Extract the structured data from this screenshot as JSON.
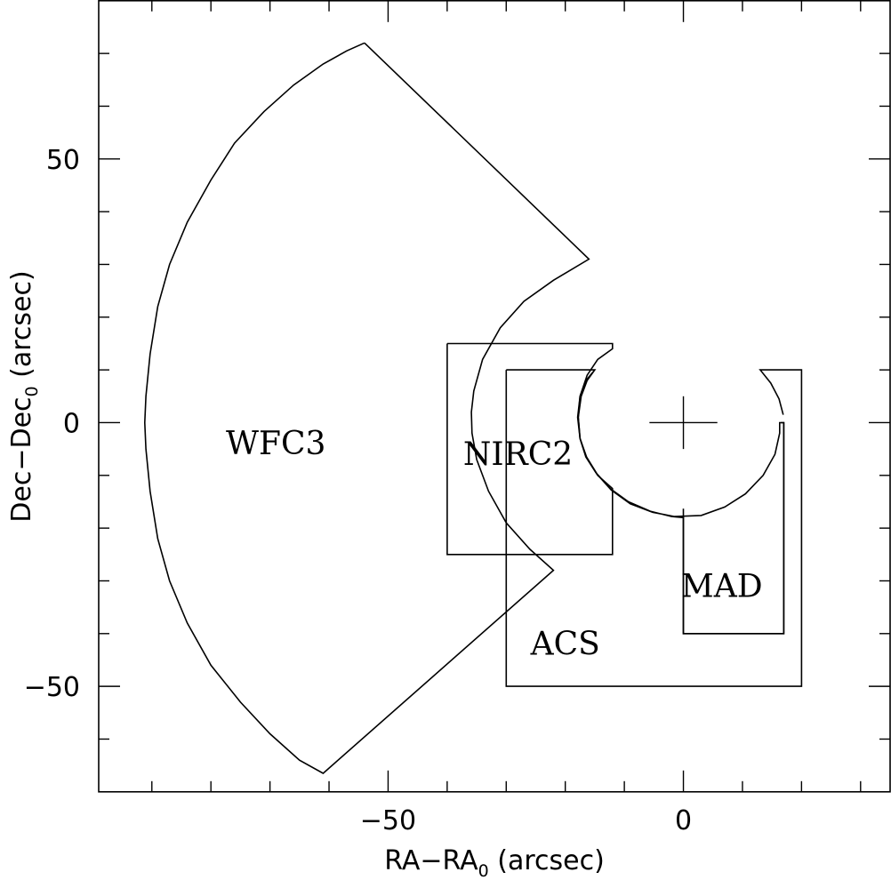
{
  "chart_data": {
    "type": "line",
    "xlabel": "RA−RA",
    "xlabel_sub": "0",
    "xlabel_tail": " (arcsec)",
    "ylabel": "Dec−Dec",
    "ylabel_sub": "0",
    "ylabel_tail": " (arcsec)",
    "xlim": [
      -99,
      35
    ],
    "ylim": [
      -70,
      80
    ],
    "grid": false,
    "x_ticks": [
      {
        "value": -50,
        "label": "−50"
      },
      {
        "value": 0,
        "label": "0"
      }
    ],
    "y_ticks": [
      {
        "value": 50,
        "label": "50"
      },
      {
        "value": 0,
        "label": "0"
      },
      {
        "value": -50,
        "label": "−50"
      }
    ],
    "x_minor_ticks": [
      -90,
      -80,
      -70,
      -60,
      -50,
      -40,
      -30,
      -20,
      -10,
      0,
      10,
      20,
      30
    ],
    "y_minor_ticks": [
      -60,
      -50,
      -40,
      -30,
      -20,
      -10,
      0,
      10,
      20,
      30,
      40,
      50,
      60,
      70
    ],
    "center_marker": {
      "x": 0,
      "y": 0,
      "half_size": 5,
      "symbol": "+"
    },
    "fields": [
      {
        "name": "WFC3",
        "label": "WFC3",
        "label_pos": [
          -69,
          -4
        ],
        "points": [
          [
            -54,
            72
          ],
          [
            -57,
            70.5
          ],
          [
            -61,
            68
          ],
          [
            -66,
            64
          ],
          [
            -71,
            59
          ],
          [
            -76,
            53
          ],
          [
            -80,
            46
          ],
          [
            -84,
            38
          ],
          [
            -87,
            30
          ],
          [
            -89,
            22
          ],
          [
            -90.3,
            13
          ],
          [
            -91,
            5
          ],
          [
            -91.2,
            0
          ],
          [
            -91,
            -5
          ],
          [
            -90.3,
            -13
          ],
          [
            -89,
            -22
          ],
          [
            -87,
            -30
          ],
          [
            -84,
            -38
          ],
          [
            -80,
            -46
          ],
          [
            -75,
            -53
          ],
          [
            -70,
            -59
          ],
          [
            -65,
            -64
          ],
          [
            -61,
            -66.5
          ],
          [
            -22,
            -28
          ],
          [
            -26,
            -24
          ],
          [
            -30,
            -19
          ],
          [
            -33,
            -13
          ],
          [
            -35,
            -7
          ],
          [
            -35.8,
            -2
          ],
          [
            -35.9,
            2
          ],
          [
            -35.5,
            6
          ],
          [
            -34,
            12
          ],
          [
            -31,
            18
          ],
          [
            -27,
            23
          ],
          [
            -22,
            27
          ],
          [
            -16,
            31
          ],
          [
            -54,
            72
          ]
        ]
      },
      {
        "name": "NIRC2",
        "label": "NIRC2",
        "label_pos": [
          -28,
          -6
        ],
        "points": [
          [
            -40,
            15
          ],
          [
            -12,
            15
          ],
          [
            -12,
            14
          ],
          [
            -14.5,
            12
          ],
          [
            -16.3,
            9
          ],
          [
            -17.5,
            5
          ],
          [
            -17.8,
            1
          ],
          [
            -17.5,
            -3
          ],
          [
            -16.5,
            -6.5
          ],
          [
            -14.5,
            -10
          ],
          [
            -12,
            -12.5
          ],
          [
            -12,
            -25
          ],
          [
            -40,
            -25
          ],
          [
            -40,
            15
          ]
        ]
      },
      {
        "name": "ACS",
        "label": "ACS",
        "label_pos": [
          -20,
          -42
        ],
        "points": [
          [
            -30,
            10
          ],
          [
            -15,
            10
          ],
          [
            -16.3,
            8
          ],
          [
            -17.3,
            5
          ],
          [
            -17.8,
            1
          ],
          [
            -17.5,
            -3
          ],
          [
            -16.5,
            -6.5
          ],
          [
            -14.8,
            -9.5
          ],
          [
            -12.4,
            -12.5
          ],
          [
            -9.3,
            -15
          ],
          [
            -5.6,
            -16.8
          ],
          [
            -2,
            -17.8
          ],
          [
            0,
            -18
          ],
          [
            0,
            -40
          ],
          [
            17,
            -40
          ],
          [
            17,
            0
          ],
          [
            16.3,
            0
          ],
          [
            16.3,
            -2
          ],
          [
            15.5,
            -6
          ],
          [
            13.5,
            -10
          ],
          [
            10.5,
            -13.5
          ],
          [
            7,
            -16
          ],
          [
            3,
            -17.6
          ],
          [
            -1.5,
            -17.8
          ],
          [
            -5.2,
            -17
          ],
          [
            -9,
            -15.4
          ],
          [
            -12.2,
            -12.8
          ],
          [
            -14.6,
            -9.8
          ],
          [
            -16.4,
            -6.5
          ],
          [
            -17.5,
            -3
          ],
          [
            -17.9,
            1
          ],
          [
            -17.5,
            5
          ],
          [
            -16.5,
            8
          ],
          [
            -15,
            10
          ]
        ]
      },
      {
        "name": "ACS-outer",
        "label": "",
        "label_pos": [
          0,
          0
        ],
        "points": [
          [
            -30,
            10
          ],
          [
            -30,
            -50
          ],
          [
            20,
            -50
          ],
          [
            20,
            10
          ],
          [
            13,
            10
          ],
          [
            14.8,
            7.5
          ],
          [
            16.2,
            4.5
          ],
          [
            16.9,
            1.5
          ]
        ]
      },
      {
        "name": "MAD",
        "label": "MAD",
        "label_pos": [
          6.5,
          -31
        ],
        "points": [
          [
            0,
            -16.3
          ],
          [
            0,
            -40
          ],
          [
            17,
            -40
          ],
          [
            17,
            0
          ],
          [
            16.5,
            0
          ]
        ]
      }
    ]
  }
}
